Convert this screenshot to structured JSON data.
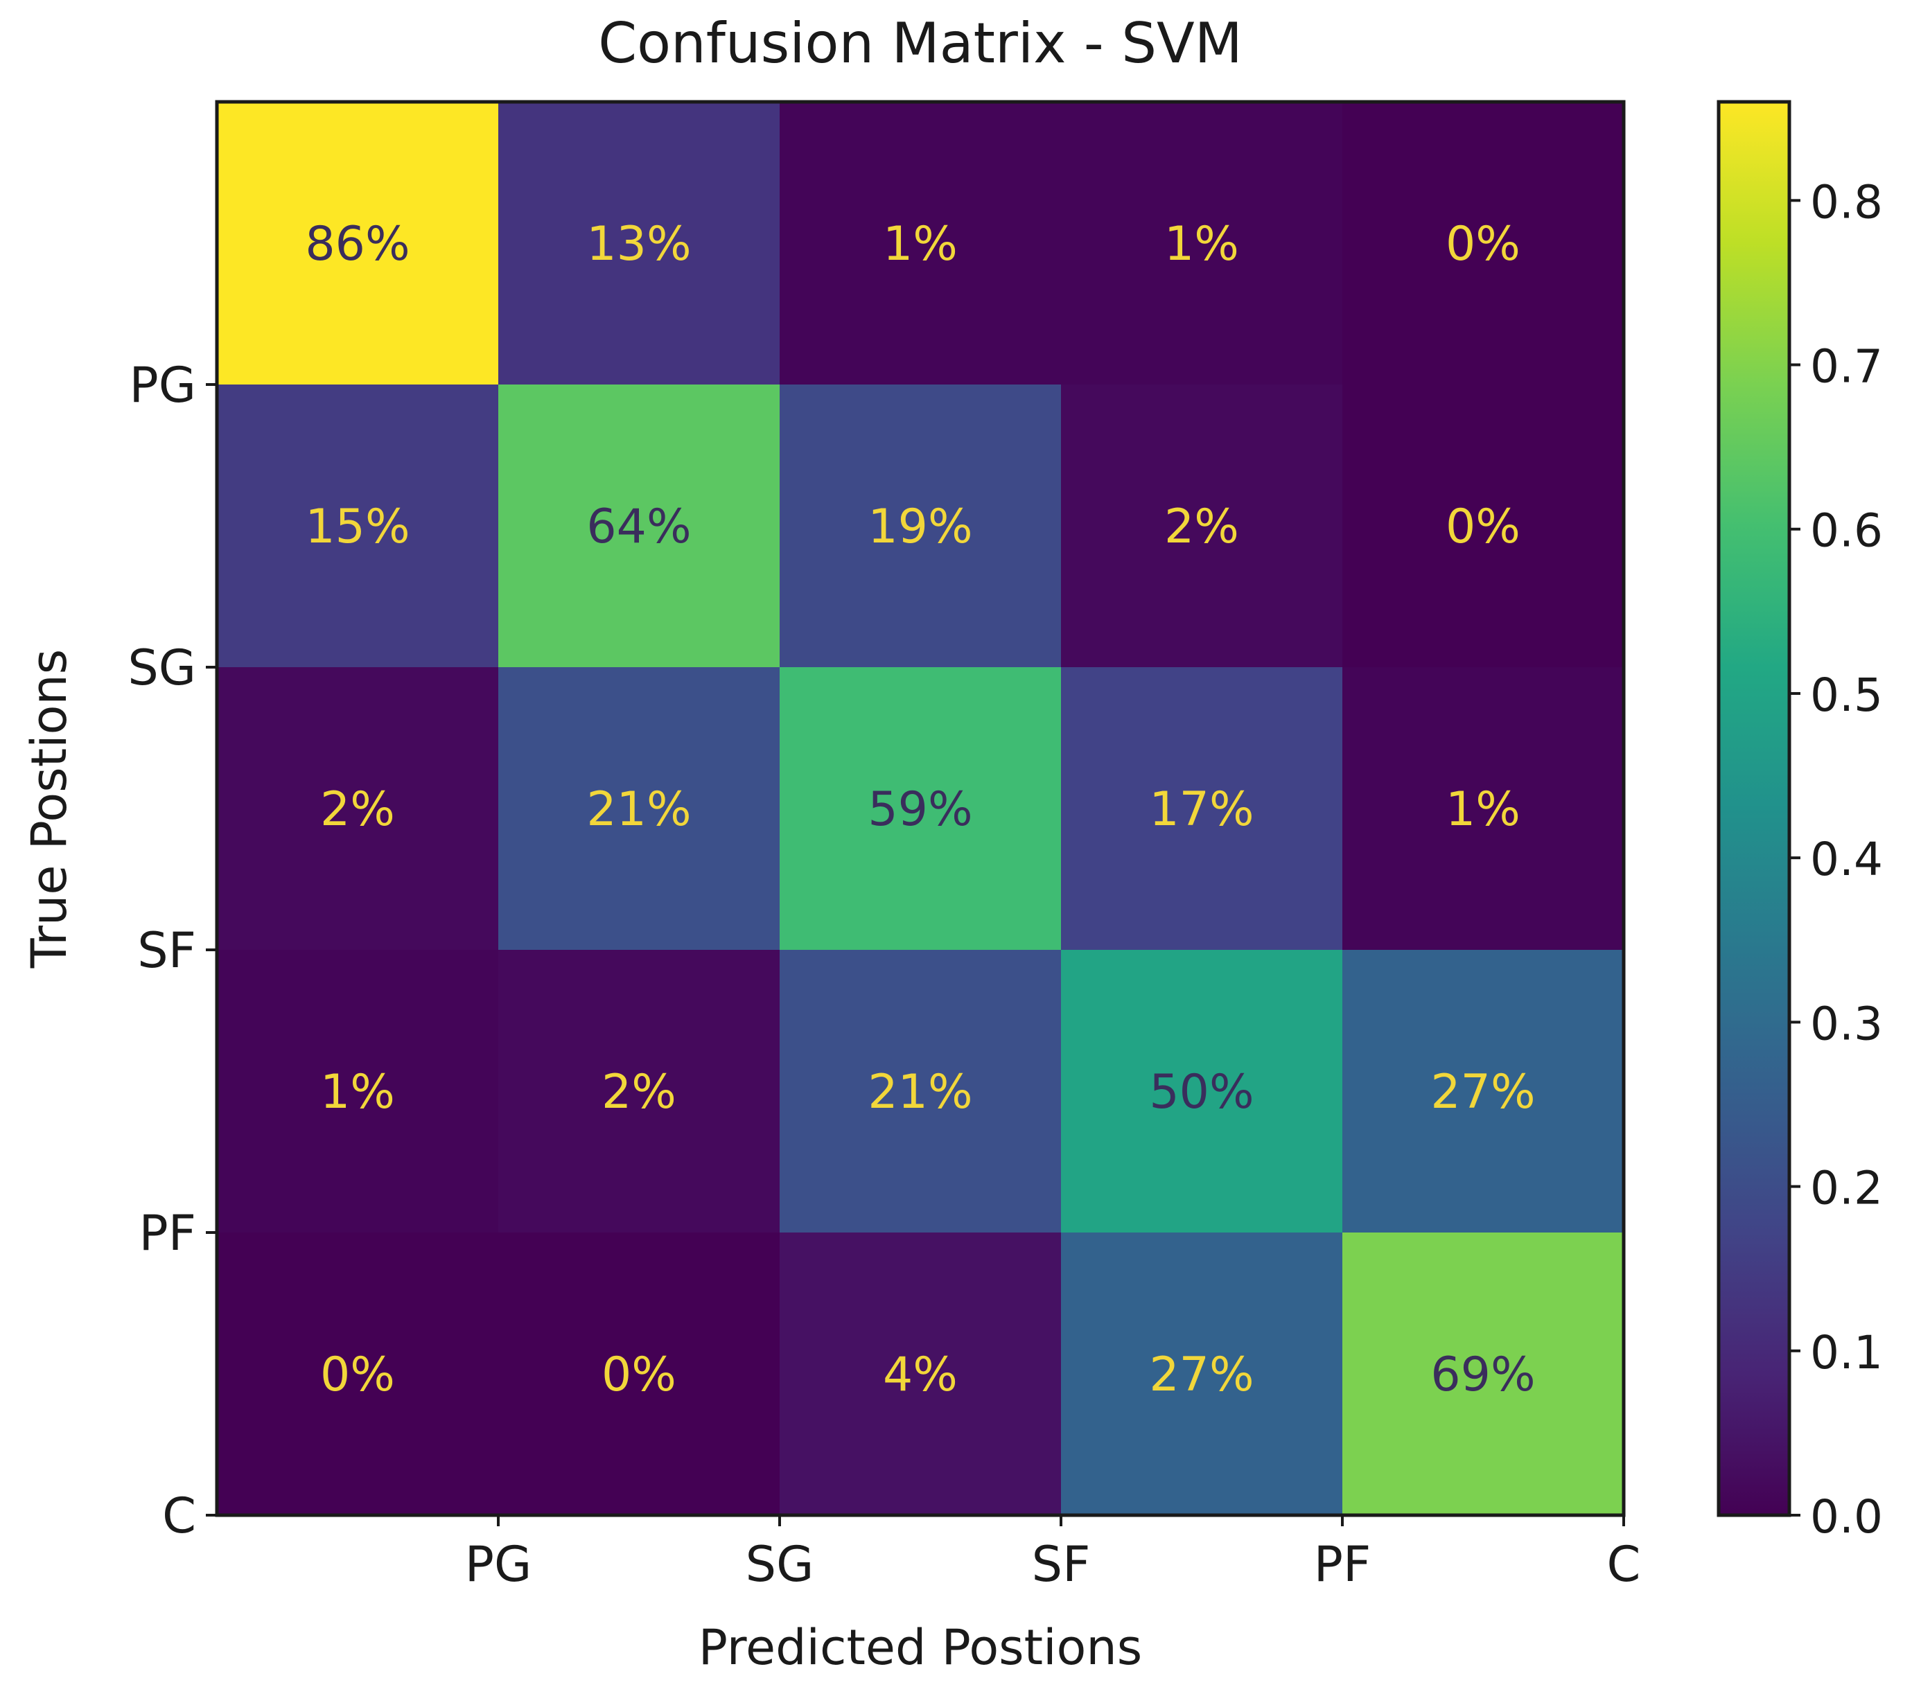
{
  "chart_data": {
    "type": "heatmap",
    "title": "Confusion Matrix - SVM",
    "xlabel": "Predicted Postions",
    "ylabel": "True Postions",
    "x_tick_labels": [
      "PG",
      "SG",
      "SF",
      "PF",
      "C"
    ],
    "y_tick_labels": [
      "PG",
      "SG",
      "SF",
      "PF",
      "C"
    ],
    "rows": [
      "PG",
      "SG",
      "SF",
      "PF",
      "C"
    ],
    "columns": [
      "PG",
      "SG",
      "SF",
      "PF",
      "C"
    ],
    "values": [
      [
        0.86,
        0.13,
        0.01,
        0.01,
        0.0
      ],
      [
        0.15,
        0.64,
        0.19,
        0.02,
        0.0
      ],
      [
        0.02,
        0.21,
        0.59,
        0.17,
        0.01
      ],
      [
        0.01,
        0.02,
        0.21,
        0.5,
        0.27
      ],
      [
        0.0,
        0.0,
        0.04,
        0.27,
        0.69
      ]
    ],
    "cell_labels": [
      [
        "86%",
        "13%",
        "1%",
        "1%",
        "0%"
      ],
      [
        "15%",
        "64%",
        "19%",
        "2%",
        "0%"
      ],
      [
        "2%",
        "21%",
        "59%",
        "17%",
        "1%"
      ],
      [
        "1%",
        "2%",
        "21%",
        "50%",
        "27%"
      ],
      [
        "0%",
        "0%",
        "4%",
        "27%",
        "69%"
      ]
    ],
    "colormap": "viridis",
    "colorbar": {
      "range": [
        0.0,
        0.86
      ],
      "ticks": [
        0.0,
        0.1,
        0.2,
        0.3,
        0.4,
        0.5,
        0.6,
        0.7,
        0.8
      ],
      "tick_labels": [
        "0.0",
        "0.1",
        "0.2",
        "0.3",
        "0.4",
        "0.5",
        "0.6",
        "0.7",
        "0.8"
      ],
      "placement": "right"
    },
    "colors": {
      "annotation_light": "#f2d73a",
      "annotation_dark": "#3a2d5c"
    }
  }
}
